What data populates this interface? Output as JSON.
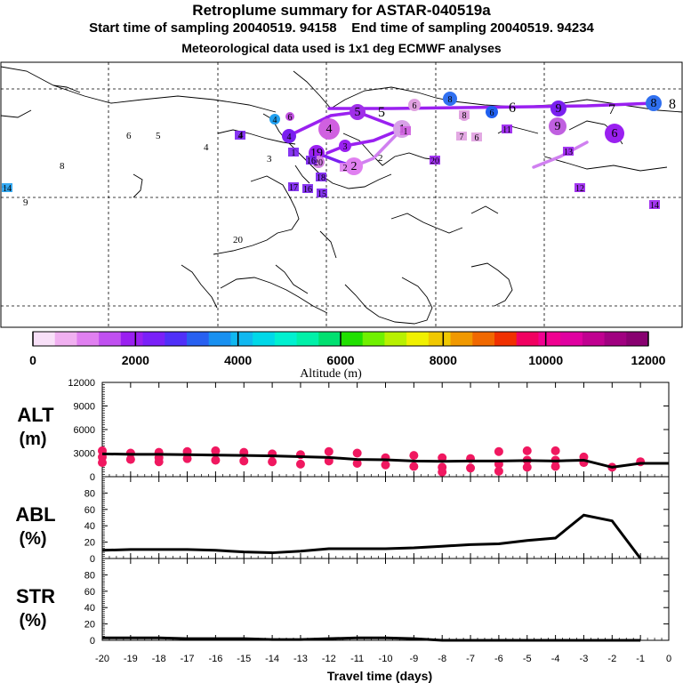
{
  "header": {
    "title": "Retroplume summary for ASTAR-040519a",
    "start_label": "Start time of sampling 20040519. 94158",
    "end_label": "End time of sampling 20040519. 94234",
    "met_label": "Meteorological data used is 1x1 deg ECMWF analyses"
  },
  "colorbar": {
    "label": "Altitude (m)",
    "ticks": [
      "0",
      "2000",
      "4000",
      "6000",
      "8000",
      "10000",
      "12000"
    ],
    "colors": [
      "#f8e0f8",
      "#f0b0f0",
      "#e080f0",
      "#c050f0",
      "#9a20f0",
      "#7a20f8",
      "#5030f8",
      "#2860f0",
      "#1890f0",
      "#10b8f0",
      "#00d8e8",
      "#00f0d0",
      "#00f0a8",
      "#00e070",
      "#20e000",
      "#70f000",
      "#b8f000",
      "#f0f000",
      "#f0c800",
      "#f09800",
      "#f06800",
      "#f03000",
      "#f00060",
      "#f00090",
      "#e000a0",
      "#c00090",
      "#a00080",
      "#880070"
    ]
  },
  "map": {
    "labels": [
      {
        "t": "1",
        "c": "#d8a0e8"
      },
      {
        "t": "2",
        "c": "#e080f0"
      },
      {
        "t": "3",
        "c": "#9a20f0"
      },
      {
        "t": "4",
        "c": "#d060e0"
      },
      {
        "t": "5",
        "c": "#a030e8"
      },
      {
        "t": "6",
        "c": "#e0a0e0"
      },
      {
        "t": "7",
        "c": "#e0a0e0"
      },
      {
        "t": "8",
        "c": "#3070f0"
      },
      {
        "t": "9",
        "c": "#c060e0"
      },
      {
        "t": "4",
        "c": "#20a0f0"
      },
      {
        "t": "6",
        "c": "#c050e0"
      },
      {
        "t": "6",
        "c": "#2060f0"
      },
      {
        "t": "8",
        "c": "#e0a0e0"
      },
      {
        "t": "7",
        "c": "#e0a0e0"
      },
      {
        "t": "6",
        "c": "#e0a0e0"
      },
      {
        "t": "4",
        "c": "#7a20f0"
      },
      {
        "t": "8",
        "c": "#3070f0"
      },
      {
        "t": "6",
        "c": "#9a20f0"
      },
      {
        "t": "1",
        "c": "#d060e0"
      },
      {
        "t": "2",
        "c": "#e080f0"
      },
      {
        "t": "13",
        "c": "#9a20f0"
      },
      {
        "t": "11",
        "c": "#9a20f0"
      },
      {
        "t": "12",
        "c": "#9a20f0"
      },
      {
        "t": "14",
        "c": "#9a20f0"
      },
      {
        "t": "18",
        "c": "#7a20f0"
      },
      {
        "t": "19",
        "c": "#9a20f0"
      },
      {
        "t": "20",
        "c": "#d080e0"
      },
      {
        "t": "17",
        "c": "#7a20f0"
      },
      {
        "t": "16",
        "c": "#7a20f0"
      },
      {
        "t": "15",
        "c": "#7a20f0"
      },
      {
        "t": "16",
        "c": "#7a20f0"
      },
      {
        "t": "14",
        "c": "#20a0f0"
      },
      {
        "t": "20",
        "c": "#9a20f0"
      },
      {
        "t": "1",
        "c": "#7a20f0"
      },
      {
        "t": "4",
        "c": "#7a20f0"
      },
      {
        "t": "9",
        "c": "#7a20f0"
      }
    ],
    "plain_labels": [
      "6",
      "5",
      "4",
      "8",
      "9",
      "20",
      "2",
      "3",
      "4"
    ]
  },
  "chart_data": [
    {
      "type": "scatter+line",
      "panel": "ALT",
      "ylabel": [
        "ALT",
        "(m)"
      ],
      "ylim": [
        0,
        12000
      ],
      "yticks": [
        "0",
        "3000",
        "6000",
        "9000",
        "12000"
      ],
      "x": [
        -20,
        -19,
        -18,
        -17,
        -16,
        -15,
        -14,
        -13,
        -12,
        -11,
        -10,
        -9,
        -8,
        -7,
        -6,
        -5,
        -4,
        -3,
        -2,
        -1,
        0
      ],
      "line": [
        2900,
        2850,
        2850,
        2800,
        2750,
        2700,
        2650,
        2550,
        2450,
        2200,
        2150,
        2000,
        1950,
        2000,
        2000,
        2050,
        2000,
        2100,
        1200,
        1700,
        1700
      ],
      "points": [
        {
          "x": -20,
          "y": 3300
        },
        {
          "x": -20,
          "y": 2500
        },
        {
          "x": -20,
          "y": 1800
        },
        {
          "x": -19,
          "y": 3000
        },
        {
          "x": -19,
          "y": 2200
        },
        {
          "x": -18,
          "y": 3100
        },
        {
          "x": -18,
          "y": 2400
        },
        {
          "x": -18,
          "y": 1900
        },
        {
          "x": -17,
          "y": 3200
        },
        {
          "x": -17,
          "y": 2300
        },
        {
          "x": -16,
          "y": 3300
        },
        {
          "x": -16,
          "y": 2100
        },
        {
          "x": -15,
          "y": 3100
        },
        {
          "x": -15,
          "y": 2000
        },
        {
          "x": -14,
          "y": 2900
        },
        {
          "x": -14,
          "y": 1900
        },
        {
          "x": -13,
          "y": 2800
        },
        {
          "x": -13,
          "y": 1600
        },
        {
          "x": -12,
          "y": 3200
        },
        {
          "x": -12,
          "y": 2000
        },
        {
          "x": -11,
          "y": 3000
        },
        {
          "x": -11,
          "y": 1700
        },
        {
          "x": -10,
          "y": 2400
        },
        {
          "x": -10,
          "y": 1500
        },
        {
          "x": -9,
          "y": 2700
        },
        {
          "x": -9,
          "y": 1300
        },
        {
          "x": -8,
          "y": 2400
        },
        {
          "x": -8,
          "y": 1200
        },
        {
          "x": -8,
          "y": 600
        },
        {
          "x": -7,
          "y": 2300
        },
        {
          "x": -7,
          "y": 1100
        },
        {
          "x": -6,
          "y": 3200
        },
        {
          "x": -6,
          "y": 1600
        },
        {
          "x": -6,
          "y": 700
        },
        {
          "x": -5,
          "y": 3300
        },
        {
          "x": -5,
          "y": 2100
        },
        {
          "x": -5,
          "y": 1200
        },
        {
          "x": -4,
          "y": 3300
        },
        {
          "x": -4,
          "y": 2100
        },
        {
          "x": -4,
          "y": 1300
        },
        {
          "x": -3,
          "y": 2500
        },
        {
          "x": -3,
          "y": 1800
        },
        {
          "x": -2,
          "y": 1200
        },
        {
          "x": -1,
          "y": 1900
        }
      ]
    },
    {
      "type": "line",
      "panel": "ABL",
      "ylabel": [
        "ABL",
        "(%)"
      ],
      "ylim": [
        0,
        100
      ],
      "yticks": [
        "0",
        "20",
        "40",
        "60",
        "80"
      ],
      "x": [
        -20,
        -19,
        -18,
        -17,
        -16,
        -15,
        -14,
        -13,
        -12,
        -11,
        -10,
        -9,
        -8,
        -7,
        -6,
        -5,
        -4,
        -3,
        -2,
        -1
      ],
      "values": [
        10,
        11,
        11,
        11,
        10,
        8,
        7,
        9,
        12,
        12,
        12,
        13,
        15,
        17,
        18,
        22,
        25,
        53,
        46,
        0
      ]
    },
    {
      "type": "line",
      "panel": "STR",
      "ylabel": [
        "STR",
        "(%)"
      ],
      "ylim": [
        0,
        100
      ],
      "yticks": [
        "0",
        "20",
        "40",
        "60",
        "80"
      ],
      "x": [
        -20,
        -19,
        -18,
        -17,
        -16,
        -15,
        -14,
        -13,
        -12,
        -11,
        -10,
        -9,
        -8,
        -7,
        -6,
        -5,
        -4,
        -3,
        -2,
        -1
      ],
      "values": [
        3,
        3,
        3,
        2,
        2,
        2,
        1,
        1,
        2,
        3,
        3,
        2,
        0,
        0,
        0,
        0,
        0,
        0,
        0,
        0
      ]
    }
  ],
  "xaxis": {
    "label": "Travel time (days)",
    "ticks": [
      "-20",
      "-19",
      "-18",
      "-17",
      "-16",
      "-15",
      "-14",
      "-13",
      "-12",
      "-11",
      "-10",
      "-9",
      "-8",
      "-7",
      "-6",
      "-5",
      "-4",
      "-3",
      "-2",
      "-1",
      "0"
    ]
  }
}
